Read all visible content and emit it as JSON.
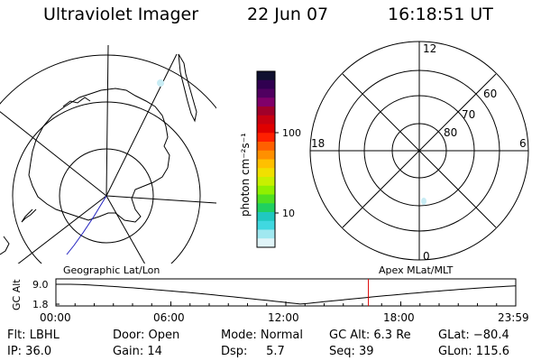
{
  "header": {
    "title": "Ultraviolet Imager",
    "date": "22 Jun 07",
    "time": "16:18:51 UT"
  },
  "colorbar": {
    "label": "photon cm⁻²s⁻¹",
    "ticks": [
      "100",
      "10"
    ],
    "colors": [
      "#101030",
      "#300050",
      "#500060",
      "#80006a",
      "#a0002a",
      "#c80010",
      "#e00000",
      "#ff2000",
      "#ff6000",
      "#ff9000",
      "#ffc000",
      "#f0e000",
      "#c8f000",
      "#90f000",
      "#50e020",
      "#20d060",
      "#20c8c0",
      "#40d8e0",
      "#a0e8f0",
      "#e0f4f8"
    ]
  },
  "left_map": {
    "caption": "Geographic Lat/Lon"
  },
  "right_map": {
    "caption": "Apex MLat/MLT",
    "mlt_labels": {
      "top": "12",
      "left": "18",
      "right": "6",
      "bottom": "0"
    },
    "lat_labels": [
      "60",
      "70",
      "80"
    ]
  },
  "altitude_plot": {
    "axis_label": "GC Alt",
    "y_ticks": [
      "9.0",
      "1.8"
    ],
    "x_ticks": [
      "00:00",
      "06:00",
      "12:00",
      "18:00",
      "23:59"
    ],
    "marker_time_hours": 16.31,
    "marker_color": "#dd0000"
  },
  "info": {
    "filter": "Flt: LBHL",
    "ip": "IP: 36.0",
    "door": "Door: Open",
    "gain": "Gain: 14",
    "mode": "Mode: Normal",
    "dsp": "Dsp:     5.7",
    "gc_alt": "GC Alt: 6.3 Re",
    "seq": "Seq: 39",
    "glat": "GLat: −80.4",
    "glon": "GLon: 115.6"
  }
}
